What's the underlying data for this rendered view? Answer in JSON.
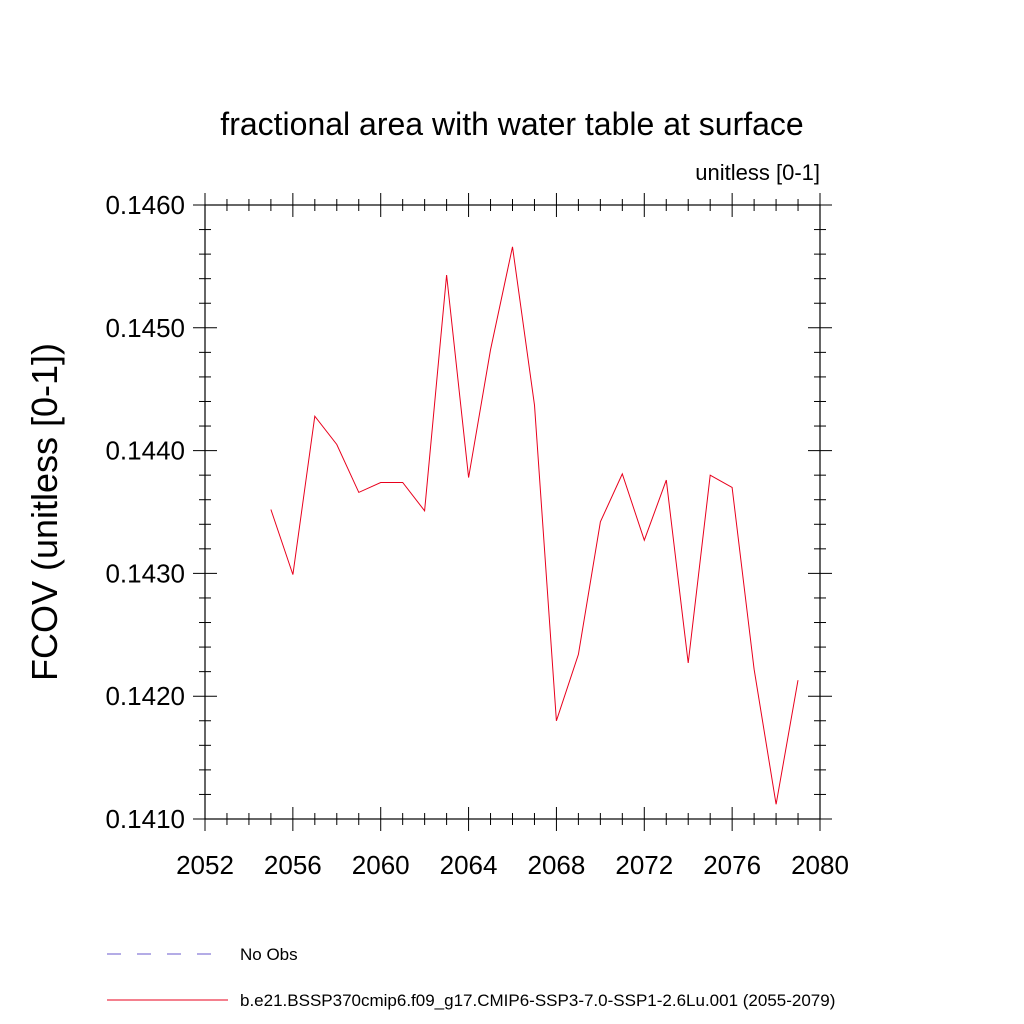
{
  "chart_data": {
    "type": "line",
    "title": "fractional area with water table at surface",
    "subtitle": "unitless [0-1]",
    "ylabel": "FCOV  (unitless [0-1])",
    "xlabel": "",
    "xlim": [
      2052,
      2080
    ],
    "ylim": [
      0.141,
      0.146
    ],
    "x_ticks": [
      2052,
      2056,
      2060,
      2064,
      2068,
      2072,
      2076,
      2080
    ],
    "x_tick_labels": [
      "2052",
      "2056",
      "2060",
      "2064",
      "2068",
      "2072",
      "2076",
      "2080"
    ],
    "y_ticks": [
      0.141,
      0.142,
      0.143,
      0.144,
      0.145,
      0.146
    ],
    "y_tick_labels": [
      "0.1410",
      "0.1420",
      "0.1430",
      "0.1440",
      "0.1450",
      "0.1460"
    ],
    "grid": false,
    "legend_placement": "bottom",
    "series": [
      {
        "name": "b.e21.BSSP370cmip6.f09_g17.CMIP6-SSP3-7.0-SSP1-2.6Lu.001 (2055-2079)",
        "color": "#e8001c",
        "style": "solid",
        "x": [
          2055,
          2056,
          2057,
          2058,
          2059,
          2060,
          2061,
          2062,
          2063,
          2064,
          2065,
          2066,
          2067,
          2068,
          2069,
          2070,
          2071,
          2072,
          2073,
          2074,
          2075,
          2076,
          2077,
          2078,
          2079
        ],
        "values": [
          0.14352,
          0.14299,
          0.14428,
          0.14405,
          0.14366,
          0.14374,
          0.14374,
          0.14351,
          0.14543,
          0.14378,
          0.14482,
          0.14566,
          0.14437,
          0.1418,
          0.14234,
          0.14342,
          0.14381,
          0.14327,
          0.14376,
          0.14227,
          0.1438,
          0.1437,
          0.14222,
          0.14112,
          0.14213
        ]
      },
      {
        "name": "No Obs",
        "color": "#6a5acd",
        "style": "dashed",
        "x": [],
        "values": []
      }
    ]
  }
}
